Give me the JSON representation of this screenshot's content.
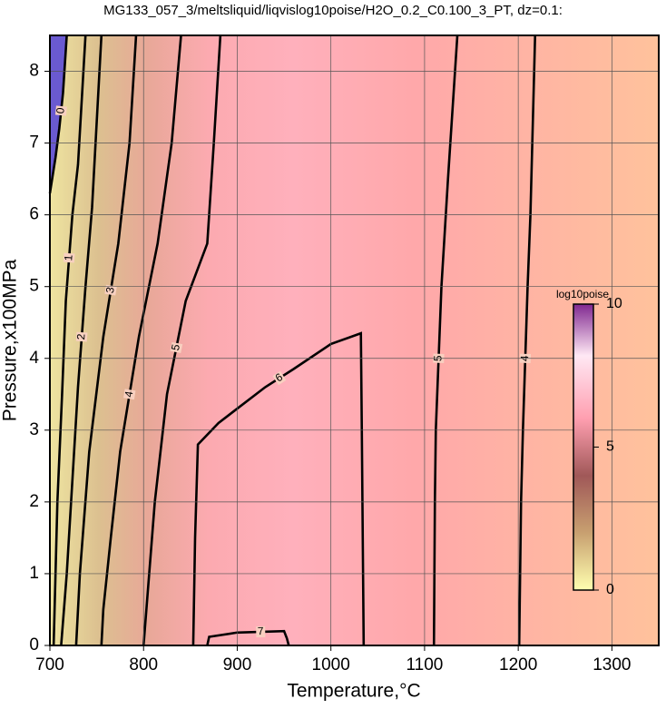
{
  "chart_data": {
    "type": "contour",
    "title": "MG133_057_3/meltsliquid/liqvislog10poise/H2O_0.2_C0.100_3_PT, dz=0.1:",
    "x_label": "Temperature,°C",
    "y_label": "Pressure,x100MPa",
    "xlim": [
      700,
      1350
    ],
    "ylim": [
      0,
      8.5
    ],
    "xticks": [
      700,
      800,
      900,
      1000,
      1100,
      1200,
      1300
    ],
    "yticks": [
      0,
      1,
      2,
      3,
      4,
      5,
      6,
      7,
      8
    ],
    "grid": true,
    "contours": [
      {
        "level": 0,
        "x": [
          700,
          706,
          710,
          714,
          718
        ],
        "y": [
          6.3,
          6.8,
          7.2,
          7.7,
          8.5
        ]
      },
      {
        "level": 1,
        "x": [
          704,
          708,
          713,
          717,
          724,
          730,
          738
        ],
        "y": [
          0,
          2,
          3.5,
          4.8,
          6,
          6.7,
          8.5
        ]
      },
      {
        "level": 2,
        "x": [
          712,
          718,
          724,
          730,
          738,
          745,
          750,
          755
        ],
        "y": [
          0,
          1,
          2.3,
          3.6,
          5,
          6.1,
          7.3,
          8.5
        ]
      },
      {
        "level": 3,
        "x": [
          728,
          732,
          742,
          757,
          773,
          785,
          792
        ],
        "y": [
          0,
          1,
          2.7,
          4.3,
          5.6,
          7,
          8.5
        ]
      },
      {
        "level": 4,
        "x": [
          755,
          757,
          765,
          775,
          795,
          815,
          830,
          840
        ],
        "y": [
          0,
          0.5,
          1.5,
          2.7,
          4.3,
          5.6,
          7,
          8.5
        ]
      },
      {
        "level": 5,
        "x": [
          800,
          803,
          812,
          825,
          845,
          868,
          875,
          882
        ],
        "y": [
          0,
          0.5,
          2,
          3.5,
          4.8,
          5.6,
          7,
          8.5
        ]
      },
      {
        "level": 6,
        "x": [
          853,
          855,
          858,
          880,
          930,
          960,
          1000,
          1032,
          1033,
          1035
        ],
        "y": [
          0,
          1.5,
          2.8,
          3.1,
          3.6,
          3.85,
          4.2,
          4.35,
          3,
          0
        ]
      },
      {
        "level": 7,
        "x": [
          868,
          870,
          900,
          950,
          953,
          955
        ],
        "y": [
          0,
          0.12,
          0.18,
          0.2,
          0.1,
          0
        ]
      },
      {
        "level": 5,
        "x": [
          1110,
          1111,
          1112,
          1118,
          1125,
          1135
        ],
        "y": [
          0,
          2,
          3,
          5,
          6.5,
          8.5
        ]
      },
      {
        "level": 4,
        "x": [
          1201,
          1203,
          1205,
          1210,
          1213,
          1218
        ],
        "y": [
          0,
          2,
          3,
          5,
          6,
          8.5
        ]
      }
    ],
    "colorbar": {
      "label": "log10poise",
      "lim": [
        0,
        10
      ],
      "ticks": [
        0,
        5,
        10
      ]
    }
  }
}
